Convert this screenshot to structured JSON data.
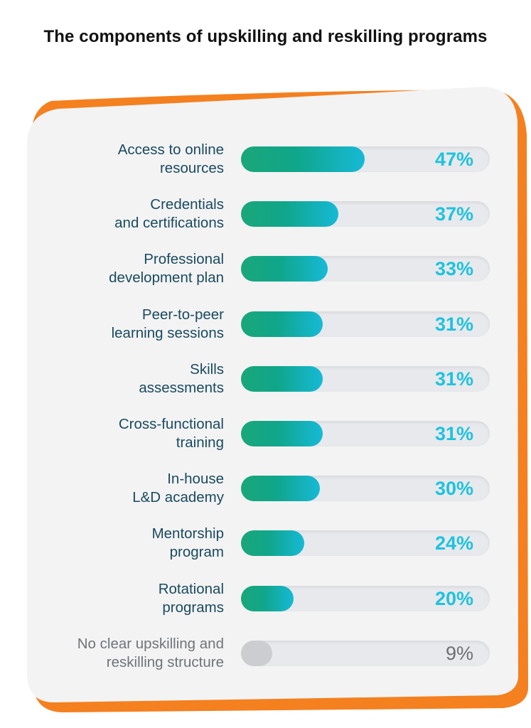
{
  "page": {
    "title": "The components of upskilling and reskilling programs"
  },
  "colors": {
    "accent_orange": "#f4801f",
    "bar_start": "#1aa679",
    "bar_end": "#16b9d6",
    "percent_text": "#1fc2df",
    "muted": "#6c7073"
  },
  "chart_data": {
    "type": "bar",
    "orientation": "horizontal",
    "title": "The components of upskilling and reskilling programs",
    "unit": "%",
    "xlim": [
      0,
      100
    ],
    "categories": [
      "Access to online\nresources",
      "Credentials\nand certifications",
      "Professional\ndevelopment plan",
      "Peer-to-peer\nlearning sessions",
      "Skills\nassessments",
      "Cross-functional\ntraining",
      "In-house\nL&D academy",
      "Mentorship\nprogram",
      "Rotational\nprograms",
      "No clear upskilling and\nreskilling structure"
    ],
    "values": [
      47,
      37,
      33,
      31,
      31,
      31,
      30,
      24,
      20,
      9
    ],
    "value_labels": [
      "47%",
      "37%",
      "33%",
      "31%",
      "31%",
      "31%",
      "30%",
      "24%",
      "20%",
      "9%"
    ],
    "muted_index": 9,
    "grid": false,
    "legend": "none"
  }
}
